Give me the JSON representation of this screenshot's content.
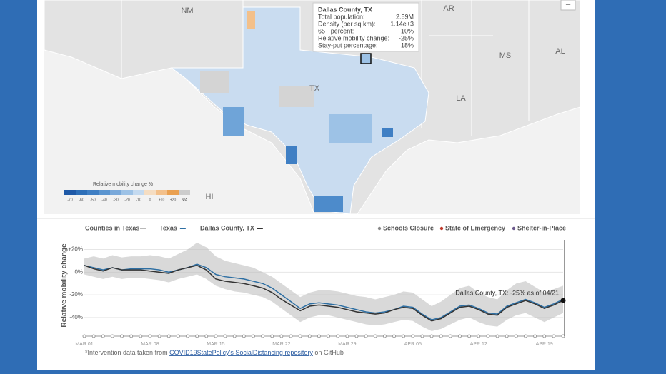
{
  "map": {
    "labels": [
      "NM",
      "AR",
      "MS",
      "AL",
      "TX",
      "LA",
      "HI"
    ],
    "zoom_button": "−",
    "tooltip": {
      "title": "Dallas County, TX",
      "rows": [
        {
          "label": "Total population:",
          "value": "2.59M"
        },
        {
          "label": "Density (per sq km):",
          "value": "1.14e+3"
        },
        {
          "label": "65+ percent:",
          "value": "10%"
        },
        {
          "label": "Relative mobility change:",
          "value": "-25%"
        },
        {
          "label": "Stay-put percentage:",
          "value": "18%"
        }
      ]
    },
    "legend": {
      "title": "Relative mobility change %",
      "ticks": [
        "-70",
        "-60",
        "-50",
        "-40",
        "-30",
        "-20",
        "-10",
        "0",
        "+10",
        "+20",
        "N/A"
      ]
    }
  },
  "chart_data": {
    "type": "line",
    "y_label": "Relative mobility change",
    "annotation": "Dallas County, TX: -25% as of 04/21",
    "events": [
      "Schools Closure",
      "State of Emergency",
      "Shelter-in-Place"
    ],
    "footnote": {
      "before": "*Intervention data taken from ",
      "link": "COVID19StatePolicy's SocialDistancing repository",
      "after": " on GitHub"
    },
    "categories": [
      "MAR 01",
      null,
      null,
      null,
      null,
      null,
      null,
      "MAR 08",
      null,
      null,
      null,
      null,
      null,
      null,
      "MAR 15",
      null,
      null,
      null,
      null,
      null,
      null,
      "MAR 22",
      null,
      null,
      null,
      null,
      null,
      null,
      "MAR 29",
      null,
      null,
      null,
      null,
      null,
      null,
      "APR 05",
      null,
      null,
      null,
      null,
      null,
      null,
      "APR 12",
      null,
      null,
      null,
      null,
      null,
      null,
      "APR 19",
      null,
      null
    ],
    "band": {
      "name": "Counties in Texas",
      "color": "#b9b9b9",
      "upper": [
        12,
        14,
        12,
        15,
        13,
        14,
        14,
        15,
        14,
        12,
        16,
        20,
        26,
        22,
        14,
        10,
        8,
        6,
        4,
        0,
        -4,
        -10,
        -16,
        -22,
        -18,
        -16,
        -16,
        -17,
        -19,
        -21,
        -22,
        -24,
        -22,
        -20,
        -17,
        -18,
        -24,
        -30,
        -26,
        -20,
        -14,
        -12,
        -18,
        -22,
        -24,
        -16,
        -10,
        -8,
        -13,
        -18,
        -15,
        -12
      ],
      "lower": [
        -2,
        -4,
        -6,
        -4,
        -6,
        -5,
        -5,
        -6,
        -7,
        -9,
        -6,
        -4,
        -2,
        -6,
        -12,
        -15,
        -17,
        -18,
        -20,
        -22,
        -26,
        -32,
        -38,
        -44,
        -40,
        -38,
        -38,
        -40,
        -42,
        -44,
        -46,
        -47,
        -46,
        -44,
        -42,
        -43,
        -48,
        -52,
        -50,
        -46,
        -42,
        -40,
        -44,
        -47,
        -48,
        -42,
        -38,
        -36,
        -40,
        -44,
        -40,
        -36
      ]
    },
    "series": [
      {
        "name": "Texas",
        "color": "#2e6fa3",
        "values": [
          6,
          4,
          2,
          4,
          2,
          3,
          3,
          3,
          2,
          0,
          2,
          4,
          7,
          4,
          -2,
          -4,
          -5,
          -6,
          -8,
          -10,
          -14,
          -20,
          -26,
          -32,
          -28,
          -27,
          -28,
          -29,
          -31,
          -33,
          -35,
          -36,
          -35,
          -33,
          -30,
          -31,
          -37,
          -42,
          -40,
          -35,
          -30,
          -29,
          -32,
          -36,
          -37,
          -30,
          -27,
          -24,
          -27,
          -31,
          -28,
          -24
        ]
      },
      {
        "name": "Dallas County, TX",
        "color": "#333333",
        "values": [
          6,
          3,
          1,
          4,
          2,
          2,
          2,
          1,
          0,
          -1,
          2,
          4,
          6,
          2,
          -6,
          -8,
          -9,
          -10,
          -12,
          -14,
          -18,
          -24,
          -29,
          -34,
          -30,
          -29,
          -30,
          -31,
          -33,
          -35,
          -36,
          -37,
          -36,
          -33,
          -31,
          -32,
          -38,
          -43,
          -41,
          -36,
          -31,
          -30,
          -33,
          -37,
          -38,
          -31,
          -28,
          -25,
          -28,
          -32,
          -29,
          -25
        ]
      }
    ],
    "ylim": [
      -52,
      26
    ],
    "yticks": [
      {
        "value": 20,
        "label": "+20%"
      },
      {
        "value": 0,
        "label": "0%"
      },
      {
        "value": -20,
        "label": "-20%"
      },
      {
        "value": -40,
        "label": "-40%"
      }
    ],
    "grid": true
  }
}
